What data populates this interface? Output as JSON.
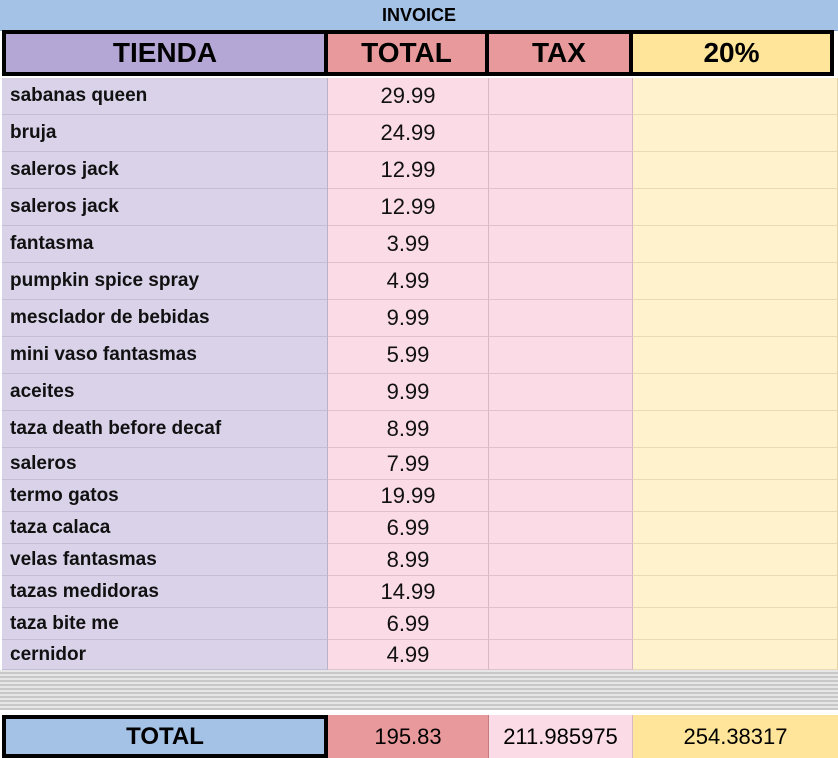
{
  "sheet": {
    "title": "INVOICE",
    "headers": {
      "tienda": "TIENDA",
      "total": "TOTAL",
      "tax": "TAX",
      "percent": "20%"
    },
    "rows": [
      {
        "item": "sabanas queen",
        "total": "29.99"
      },
      {
        "item": "bruja",
        "total": "24.99"
      },
      {
        "item": "saleros jack",
        "total": "12.99"
      },
      {
        "item": "saleros jack",
        "total": "12.99"
      },
      {
        "item": "fantasma",
        "total": "3.99"
      },
      {
        "item": "pumpkin spice spray",
        "total": "4.99"
      },
      {
        "item": "mesclador de bebidas",
        "total": "9.99"
      },
      {
        "item": "mini vaso fantasmas",
        "total": "5.99"
      },
      {
        "item": "aceites",
        "total": "9.99"
      },
      {
        "item": "taza death before decaf",
        "total": "8.99"
      },
      {
        "item": "saleros",
        "total": "7.99"
      },
      {
        "item": "termo gatos",
        "total": "19.99"
      },
      {
        "item": "taza calaca",
        "total": "6.99"
      },
      {
        "item": "velas fantasmas",
        "total": "8.99"
      },
      {
        "item": "tazas medidoras",
        "total": "14.99"
      },
      {
        "item": "taza bite me",
        "total": "6.99"
      },
      {
        "item": "cernidor",
        "total": "4.99"
      }
    ],
    "totals": {
      "label": "TOTAL",
      "total": "195.83",
      "tax": "211.985975",
      "percent": "254.38317"
    },
    "colors": {
      "title_bg": "#a4c2e6",
      "tienda_header": "#b4a7d6",
      "total_header": "#e8999b",
      "percent_header": "#ffe599",
      "items_col": "#d9d2e9",
      "values_col": "#fadbe6",
      "percent_col": "#fff2cc"
    }
  }
}
